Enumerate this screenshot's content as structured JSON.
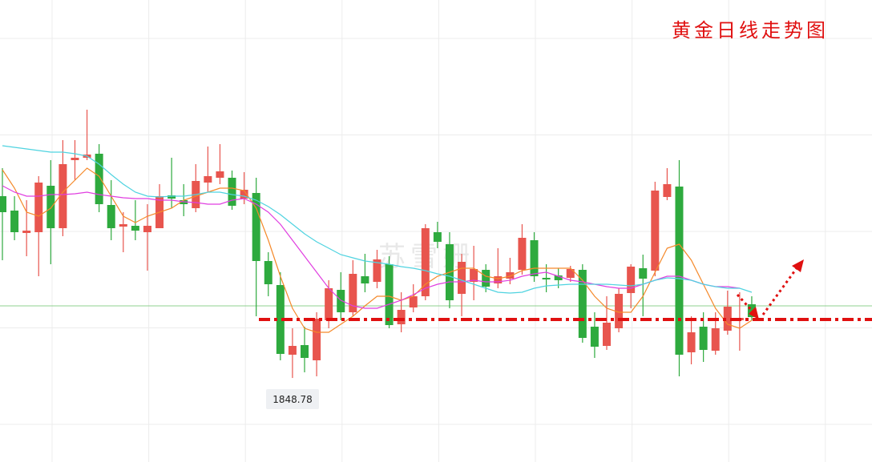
{
  "chart_data": {
    "type": "candlestick",
    "title": "黄金日线走势图",
    "watermark": "苏雪姗",
    "ylim": [
      1806.8,
      2037.6
    ],
    "grid": true,
    "up_color": "#e8554e",
    "down_color": "#2eaa3e",
    "open": [
      1939.6,
      1932.4,
      1921.2,
      1921.6,
      1944.8,
      1923.6,
      1957.6,
      1958.8,
      1960.8,
      1935.2,
      1924.4,
      1924.8,
      1921.6,
      1923.6,
      1940.0,
      1937.6,
      1933.6,
      1946.4,
      1948.8,
      1948.8,
      1938.4,
      1941.2,
      1907.2,
      1895.2,
      1860.4,
      1865.2,
      1857.6,
      1877.6,
      1892.8,
      1881.6,
      1899.6,
      1896.8,
      1905.6,
      1875.6,
      1884.0,
      1889.6,
      1921.6,
      1915.6,
      1890.8,
      1896.8,
      1902.8,
      1896.0,
      1898.4,
      1902.8,
      1917.6,
      1898.8,
      1900.0,
      1898.8,
      1902.8,
      1874.4,
      1864.8,
      1873.6,
      1891.2,
      1903.6,
      1902.4,
      1939.2,
      1944.4,
      1861.6,
      1874.4,
      1862.4,
      1872.4,
      1877.6,
      1885.6
    ],
    "high": [
      1953.6,
      1939.6,
      1937.6,
      1949.6,
      1957.6,
      1967.6,
      1967.6,
      1982.8,
      1965.6,
      1947.6,
      1931.6,
      1937.6,
      1935.6,
      1945.6,
      1958.8,
      1945.6,
      1955.6,
      1964.4,
      1965.6,
      1952.4,
      1951.6,
      1948.8,
      1911.6,
      1901.6,
      1873.6,
      1874.4,
      1881.6,
      1897.6,
      1901.6,
      1907.6,
      1910.8,
      1912.8,
      1909.6,
      1891.6,
      1895.6,
      1925.6,
      1926.8,
      1921.6,
      1910.8,
      1914.8,
      1905.6,
      1913.6,
      1908.8,
      1925.6,
      1921.6,
      1905.6,
      1903.6,
      1904.8,
      1905.6,
      1881.6,
      1889.6,
      1893.6,
      1905.6,
      1910.4,
      1946.8,
      1953.6,
      1957.6,
      1879.6,
      1881.6,
      1881.6,
      1892.4,
      1891.6,
      1889.6
    ],
    "low": [
      1907.6,
      1917.6,
      1909.6,
      1899.6,
      1905.6,
      1919.6,
      1947.6,
      1957.6,
      1931.6,
      1917.6,
      1911.6,
      1917.6,
      1902.4,
      1923.6,
      1933.6,
      1929.6,
      1931.6,
      1941.6,
      1945.6,
      1932.8,
      1935.6,
      1879.6,
      1889.6,
      1857.6,
      1848.78,
      1851.6,
      1849.6,
      1873.6,
      1877.6,
      1879.6,
      1891.6,
      1893.6,
      1873.6,
      1871.6,
      1881.6,
      1887.6,
      1913.6,
      1883.6,
      1879.6,
      1887.6,
      1891.6,
      1893.6,
      1895.6,
      1900.4,
      1896.8,
      1891.6,
      1893.6,
      1896.8,
      1866.4,
      1858.8,
      1862.8,
      1871.6,
      1883.6,
      1879.6,
      1899.6,
      1937.6,
      1849.6,
      1855.6,
      1856.8,
      1860.4,
      1870.4,
      1862.4,
      1877.6
    ],
    "close": [
      1931.6,
      1921.6,
      1922.4,
      1946.4,
      1923.6,
      1955.6,
      1958.8,
      1960.4,
      1935.6,
      1923.6,
      1925.6,
      1922.4,
      1924.8,
      1939.6,
      1938.4,
      1935.6,
      1947.2,
      1949.6,
      1952.0,
      1934.8,
      1942.8,
      1907.2,
      1895.6,
      1860.8,
      1864.8,
      1858.8,
      1878.4,
      1893.6,
      1881.6,
      1900.8,
      1896.0,
      1908.0,
      1875.2,
      1882.8,
      1889.6,
      1923.6,
      1916.8,
      1887.6,
      1906.8,
      1903.2,
      1894.4,
      1899.6,
      1901.6,
      1918.8,
      1899.6,
      1898.0,
      1897.6,
      1903.2,
      1868.8,
      1864.4,
      1876.4,
      1890.8,
      1904.4,
      1898.4,
      1942.4,
      1945.6,
      1860.4,
      1871.6,
      1862.8,
      1873.6,
      1884.4,
      1878.8,
      1879.2
    ],
    "ma_lines": [
      {
        "color": "#f5892a",
        "values": [
          1952.8,
          1943.6,
          1931.6,
          1929.6,
          1933.6,
          1941.6,
          1947.6,
          1953.6,
          1949.6,
          1939.6,
          1929.6,
          1926.4,
          1929.6,
          1931.6,
          1933.6,
          1937.6,
          1939.6,
          1941.6,
          1943.6,
          1943.6,
          1942.4,
          1933.6,
          1917.6,
          1899.6,
          1883.6,
          1873.6,
          1871.6,
          1871.6,
          1875.6,
          1879.6,
          1884.8,
          1889.6,
          1889.6,
          1887.6,
          1889.6,
          1895.6,
          1899.6,
          1901.6,
          1903.6,
          1903.6,
          1899.6,
          1898.4,
          1899.6,
          1902.4,
          1903.6,
          1903.6,
          1903.6,
          1903.6,
          1897.6,
          1889.6,
          1883.6,
          1881.6,
          1881.6,
          1889.6,
          1901.6,
          1913.6,
          1915.6,
          1907.6,
          1895.6,
          1883.6,
          1875.6,
          1873.6,
          1877.6
        ]
      },
      {
        "color": "#e03ee0",
        "values": [
          1944.8,
          1941.6,
          1939.6,
          1939.6,
          1940.4,
          1940.4,
          1940.8,
          1941.6,
          1940.4,
          1939.6,
          1938.8,
          1938.4,
          1938.4,
          1937.6,
          1937.6,
          1936.8,
          1936.4,
          1935.6,
          1935.6,
          1937.6,
          1938.4,
          1935.6,
          1931.6,
          1925.6,
          1917.6,
          1909.6,
          1901.6,
          1893.6,
          1887.6,
          1884.8,
          1883.6,
          1883.6,
          1885.6,
          1887.6,
          1890.4,
          1893.6,
          1895.6,
          1896.8,
          1896.8,
          1897.6,
          1896.8,
          1896.8,
          1897.6,
          1899.6,
          1900.8,
          1901.6,
          1899.6,
          1897.6,
          1896.8,
          1895.6,
          1894.4,
          1893.6,
          1893.6,
          1895.6,
          1897.6,
          1899.6,
          1899.6,
          1897.6,
          1895.6,
          1894.4,
          1894.4,
          1893.6,
          null
        ]
      },
      {
        "color": "#4fd3e0",
        "values": [
          1964.8,
          1964.0,
          1963.2,
          1962.4,
          1961.6,
          1961.6,
          1960.8,
          1959.6,
          1955.6,
          1950.4,
          1945.6,
          1941.6,
          1939.6,
          1939.2,
          1939.6,
          1939.6,
          1940.4,
          1941.6,
          1941.6,
          1940.4,
          1939.6,
          1937.6,
          1934.4,
          1930.4,
          1925.6,
          1920.8,
          1916.8,
          1913.6,
          1910.4,
          1908.8,
          1907.2,
          1906.4,
          1905.6,
          1904.4,
          1903.6,
          1902.4,
          1900.8,
          1899.6,
          1897.6,
          1895.6,
          1893.6,
          1891.6,
          1891.2,
          1891.6,
          1893.6,
          1894.8,
          1895.2,
          1895.6,
          1895.6,
          1895.6,
          1895.6,
          1895.2,
          1894.8,
          1895.6,
          1897.6,
          1898.8,
          1898.4,
          1897.6,
          1895.6,
          1894.4,
          1893.6,
          1893.6,
          1891.6
        ]
      }
    ],
    "support_level": {
      "value": 1878.0,
      "color": "#e01010"
    },
    "current_price": {
      "value": 1884.8,
      "color": "#8fd08f"
    }
  }
}
